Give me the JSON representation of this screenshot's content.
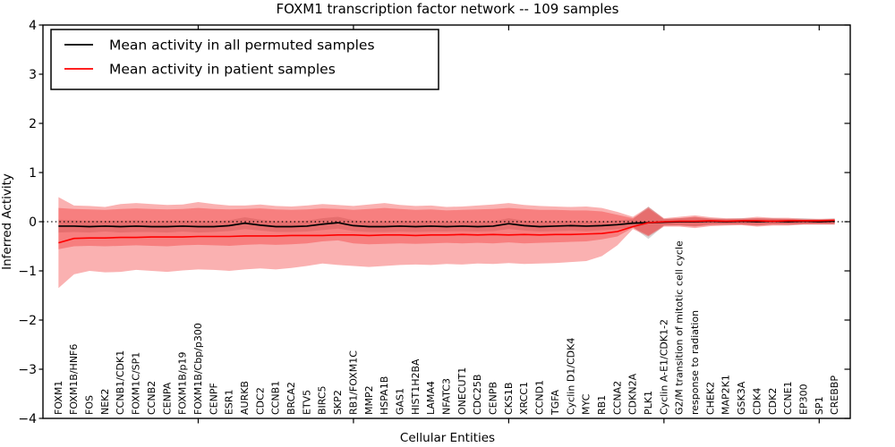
{
  "figure": {
    "title": "FOXM1 transcription factor network -- 109 samples",
    "xlabel": "Cellular Entities",
    "ylabel": "Inferred Activity",
    "legend": [
      {
        "label": "Mean activity in all permuted samples",
        "color": "#000000"
      },
      {
        "label": "Mean activity in patient samples",
        "color": "#ff0000"
      }
    ]
  },
  "colors": {
    "permuted_line": "#000000",
    "patient_line": "#ff0000",
    "patient_band_fill": "rgb(240,40,40)",
    "permuted_band_fill": "rgb(130,130,130)",
    "zero_line": "#000000"
  },
  "chart_data": {
    "type": "line",
    "title": "FOXM1 transcription factor network -- 109 samples",
    "xlabel": "Cellular Entities",
    "ylabel": "Inferred Activity",
    "ylim": [
      -4,
      4
    ],
    "yticks": [
      4,
      3,
      2,
      1,
      0,
      -1,
      -2,
      -3,
      -4
    ],
    "xticks_every": 10,
    "grid": false,
    "legend_position": "upper left",
    "zero_line": {
      "y": 0,
      "style": "dotted",
      "color": "#000000"
    },
    "categories": [
      "FOXM1",
      "FOXM1B/HNF6",
      "FOS",
      "NEK2",
      "CCNB1/CDK1",
      "FOXM1C/SP1",
      "CCNB2",
      "CENPA",
      "FOXM1B/p19",
      "FOXM1B/Cbp/p300",
      "CENPF",
      "ESR1",
      "AURKB",
      "CDC2",
      "CCNB1",
      "BRCA2",
      "ETV5",
      "BIRC5",
      "SKP2",
      "RB1/FOXM1C",
      "MMP2",
      "HSPA1B",
      "GAS1",
      "HIST1H2BA",
      "LAMA4",
      "NFATC3",
      "ONECUT1",
      "CDC25B",
      "CENPB",
      "CKS1B",
      "XRCC1",
      "CCND1",
      "TGFA",
      "Cyclin D1/CDK4",
      "MYC",
      "RB1",
      "CCNA2",
      "CDKN2A",
      "PLK1",
      "Cyclin A-E1/CDK1-2",
      "G2/M transition of mitotic cell cycle",
      "response to radiation",
      "CHEK2",
      "MAP2K1",
      "GSK3A",
      "CDK4",
      "CDK2",
      "CCNE1",
      "EP300",
      "SP1",
      "CREBBP"
    ],
    "series": [
      {
        "name": "Mean activity in all permuted samples",
        "color": "#000000",
        "width": 1.7,
        "values": [
          -0.09,
          -0.09,
          -0.1,
          -0.09,
          -0.1,
          -0.09,
          -0.1,
          -0.1,
          -0.09,
          -0.1,
          -0.1,
          -0.08,
          -0.03,
          -0.07,
          -0.1,
          -0.1,
          -0.09,
          -0.05,
          -0.02,
          -0.08,
          -0.1,
          -0.1,
          -0.09,
          -0.1,
          -0.09,
          -0.1,
          -0.09,
          -0.1,
          -0.09,
          -0.04,
          -0.08,
          -0.1,
          -0.09,
          -0.08,
          -0.09,
          -0.08,
          -0.06,
          -0.03,
          -0.02,
          -0.01,
          0.0,
          0.0,
          0.01,
          0.0,
          0.01,
          0.0,
          0.01,
          0.0,
          0.01,
          0.0,
          0.01
        ]
      },
      {
        "name": "Mean activity in patient samples",
        "color": "#ff0000",
        "width": 1.6,
        "values": [
          -0.43,
          -0.34,
          -0.33,
          -0.33,
          -0.32,
          -0.32,
          -0.31,
          -0.31,
          -0.31,
          -0.3,
          -0.3,
          -0.3,
          -0.29,
          -0.29,
          -0.29,
          -0.28,
          -0.28,
          -0.28,
          -0.27,
          -0.27,
          -0.28,
          -0.27,
          -0.27,
          -0.28,
          -0.27,
          -0.27,
          -0.26,
          -0.27,
          -0.26,
          -0.27,
          -0.26,
          -0.27,
          -0.26,
          -0.26,
          -0.25,
          -0.24,
          -0.2,
          -0.1,
          -0.02,
          0.0,
          0.01,
          0.01,
          0.02,
          0.01,
          0.02,
          0.02,
          0.01,
          0.02,
          0.02,
          0.02,
          0.03
        ]
      }
    ],
    "bands": [
      {
        "name": "permuted-std-band",
        "fill": "rgb(130,130,130)",
        "opacity": 0.32,
        "hi": [
          0.04,
          0.03,
          0.02,
          0.02,
          0.02,
          0.03,
          0.01,
          0.02,
          0.02,
          0.02,
          0.01,
          0.03,
          0.09,
          0.04,
          0.01,
          0.01,
          0.02,
          0.07,
          0.1,
          0.03,
          0.01,
          0.01,
          0.02,
          0.01,
          0.02,
          0.0,
          0.01,
          0.0,
          0.01,
          0.07,
          0.02,
          0.0,
          0.01,
          0.02,
          0.01,
          0.01,
          0.03,
          0.05,
          0.31,
          0.06,
          0.07,
          0.09,
          0.07,
          0.06,
          0.07,
          0.07,
          0.07,
          0.06,
          0.07,
          0.05,
          0.07
        ],
        "lo": [
          -0.22,
          -0.21,
          -0.22,
          -0.2,
          -0.22,
          -0.21,
          -0.21,
          -0.22,
          -0.2,
          -0.22,
          -0.21,
          -0.19,
          -0.15,
          -0.18,
          -0.21,
          -0.21,
          -0.2,
          -0.17,
          -0.14,
          -0.19,
          -0.21,
          -0.21,
          -0.2,
          -0.21,
          -0.2,
          -0.2,
          -0.19,
          -0.2,
          -0.19,
          -0.15,
          -0.18,
          -0.2,
          -0.19,
          -0.18,
          -0.19,
          -0.17,
          -0.15,
          -0.11,
          -0.35,
          -0.08,
          -0.07,
          -0.09,
          -0.05,
          -0.06,
          -0.05,
          -0.07,
          -0.05,
          -0.06,
          -0.05,
          -0.05,
          -0.05
        ]
      },
      {
        "name": "patient-outer-band",
        "fill": "rgb(240,40,40)",
        "opacity": 0.36,
        "hi": [
          0.5,
          0.33,
          0.32,
          0.3,
          0.36,
          0.38,
          0.36,
          0.34,
          0.35,
          0.4,
          0.36,
          0.33,
          0.33,
          0.35,
          0.32,
          0.31,
          0.33,
          0.36,
          0.34,
          0.32,
          0.35,
          0.38,
          0.34,
          0.32,
          0.33,
          0.3,
          0.31,
          0.33,
          0.35,
          0.38,
          0.34,
          0.32,
          0.31,
          0.3,
          0.31,
          0.28,
          0.2,
          0.1,
          0.3,
          0.07,
          0.1,
          0.13,
          0.09,
          0.07,
          0.07,
          0.1,
          0.08,
          0.08,
          0.06,
          0.06,
          0.06
        ],
        "lo": [
          -1.35,
          -1.07,
          -1.0,
          -1.03,
          -1.02,
          -0.98,
          -1.0,
          -1.02,
          -0.99,
          -0.97,
          -0.98,
          -1.0,
          -0.97,
          -0.95,
          -0.97,
          -0.94,
          -0.9,
          -0.85,
          -0.88,
          -0.9,
          -0.92,
          -0.9,
          -0.88,
          -0.87,
          -0.88,
          -0.86,
          -0.87,
          -0.85,
          -0.86,
          -0.84,
          -0.86,
          -0.85,
          -0.84,
          -0.82,
          -0.8,
          -0.7,
          -0.48,
          -0.15,
          -0.3,
          -0.1,
          -0.1,
          -0.13,
          -0.09,
          -0.08,
          -0.07,
          -0.1,
          -0.08,
          -0.08,
          -0.06,
          -0.06,
          -0.06
        ]
      },
      {
        "name": "patient-inner-band",
        "fill": "rgb(240,40,40)",
        "opacity": 0.36,
        "hi": [
          0.28,
          0.26,
          0.25,
          0.24,
          0.26,
          0.27,
          0.26,
          0.25,
          0.26,
          0.28,
          0.26,
          0.25,
          0.26,
          0.27,
          0.25,
          0.24,
          0.25,
          0.27,
          0.26,
          0.24,
          0.26,
          0.28,
          0.26,
          0.24,
          0.25,
          0.23,
          0.24,
          0.25,
          0.26,
          0.28,
          0.26,
          0.24,
          0.24,
          0.23,
          0.23,
          0.21,
          0.14,
          0.07,
          0.27,
          0.05,
          0.07,
          0.1,
          0.06,
          0.05,
          0.05,
          0.07,
          0.06,
          0.06,
          0.04,
          0.04,
          0.04
        ],
        "lo": [
          -0.56,
          -0.5,
          -0.49,
          -0.5,
          -0.49,
          -0.48,
          -0.49,
          -0.5,
          -0.48,
          -0.47,
          -0.48,
          -0.49,
          -0.47,
          -0.46,
          -0.47,
          -0.46,
          -0.44,
          -0.4,
          -0.38,
          -0.44,
          -0.46,
          -0.45,
          -0.44,
          -0.45,
          -0.44,
          -0.43,
          -0.44,
          -0.43,
          -0.44,
          -0.42,
          -0.44,
          -0.43,
          -0.42,
          -0.41,
          -0.4,
          -0.36,
          -0.3,
          -0.12,
          -0.28,
          -0.08,
          -0.08,
          -0.1,
          -0.07,
          -0.06,
          -0.06,
          -0.08,
          -0.06,
          -0.06,
          -0.05,
          -0.05,
          -0.05
        ]
      }
    ]
  }
}
